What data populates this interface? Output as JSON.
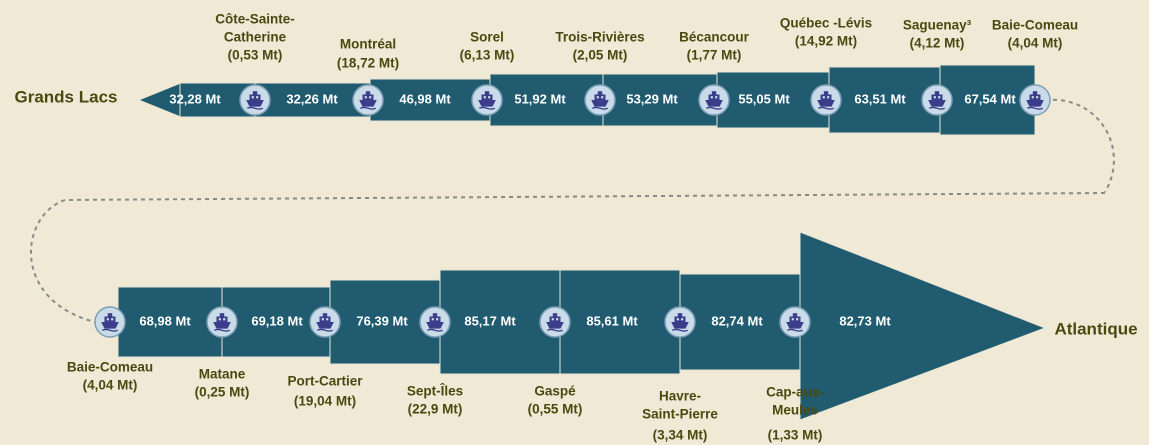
{
  "top": {
    "end_label": "Grands Lacs",
    "segments": [
      "32,28 Mt",
      "32,26 Mt",
      "46,98 Mt",
      "51,92 Mt",
      "53,29 Mt",
      "55,05 Mt",
      "63,51 Mt",
      "67,54 Mt"
    ],
    "ports": [
      {
        "name": [
          "Côte-Sainte-",
          "Catherine"
        ],
        "tonnage": "(0,53 Mt)"
      },
      {
        "name": [
          "Montréal"
        ],
        "tonnage": "(18,72 Mt)"
      },
      {
        "name": [
          "Sorel"
        ],
        "tonnage": "(6,13 Mt)"
      },
      {
        "name": [
          "Trois-Rivières"
        ],
        "tonnage": "(2,05 Mt)"
      },
      {
        "name": [
          "Bécancour"
        ],
        "tonnage": "(1,77 Mt)"
      },
      {
        "name": [
          "Québec -Lévis"
        ],
        "tonnage": "(14,92 Mt)"
      },
      {
        "name": [
          "Saguenay³"
        ],
        "tonnage": "(4,12 Mt)"
      },
      {
        "name": [
          "Baie-Comeau"
        ],
        "tonnage": "(4,04 Mt)"
      }
    ]
  },
  "bottom": {
    "end_label": "Atlantique",
    "segments": [
      "68,98 Mt",
      "69,18 Mt",
      "76,39 Mt",
      "85,17 Mt",
      "85,61 Mt",
      "82,74 Mt",
      "82,73 Mt"
    ],
    "ports": [
      {
        "name": [
          "Baie-Comeau"
        ],
        "tonnage": "(4,04 Mt)"
      },
      {
        "name": [
          "Matane"
        ],
        "tonnage": "(0,25 Mt)"
      },
      {
        "name": [
          "Port-Cartier"
        ],
        "tonnage": "(19,04 Mt)"
      },
      {
        "name": [
          "Sept-Îles"
        ],
        "tonnage": "(22,9 Mt)"
      },
      {
        "name": [
          "Gaspé"
        ],
        "tonnage": "(0,55 Mt)"
      },
      {
        "name": [
          "Havre-",
          "Saint-Pierre"
        ],
        "tonnage": "(3,34 Mt)"
      },
      {
        "name": [
          "Cap-aux-",
          "Meules"
        ],
        "tonnage": "(1,33 Mt)"
      }
    ]
  }
}
